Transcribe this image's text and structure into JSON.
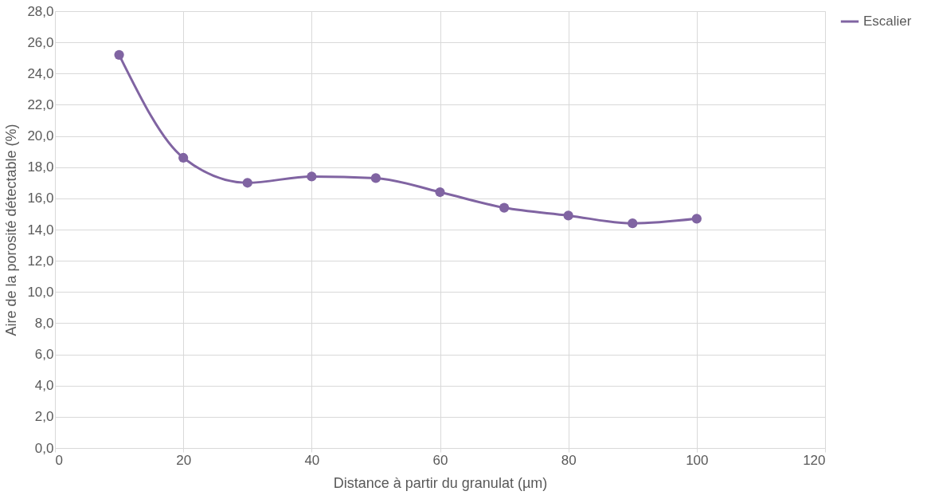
{
  "chart_data": {
    "type": "line",
    "xlabel": "Distance à partir du granulat (µm)",
    "ylabel": "Aire de la porosité détectable  (%)",
    "x": [
      10,
      20,
      30,
      40,
      50,
      60,
      70,
      80,
      90,
      100
    ],
    "series": [
      {
        "name": "Escalier",
        "color": "#8064a2",
        "values": [
          25.2,
          18.6,
          17.0,
          17.4,
          17.3,
          16.4,
          15.4,
          14.9,
          14.4,
          14.7
        ]
      }
    ],
    "xlim": [
      0,
      120
    ],
    "xticks": [
      0,
      20,
      40,
      60,
      80,
      100,
      120
    ],
    "ylim": [
      0,
      28
    ],
    "yticks": [
      {
        "value": 0,
        "label": "0,0"
      },
      {
        "value": 2,
        "label": "2,0"
      },
      {
        "value": 4,
        "label": "4,0"
      },
      {
        "value": 6,
        "label": "6,0"
      },
      {
        "value": 8,
        "label": "8,0"
      },
      {
        "value": 10,
        "label": "10,0"
      },
      {
        "value": 12,
        "label": "12,0"
      },
      {
        "value": 14,
        "label": "14,0"
      },
      {
        "value": 16,
        "label": "16,0"
      },
      {
        "value": 18,
        "label": "18,0"
      },
      {
        "value": 20,
        "label": "20,0"
      },
      {
        "value": 22,
        "label": "22,0"
      },
      {
        "value": 24,
        "label": "24,0"
      },
      {
        "value": 26,
        "label": "26,0"
      },
      {
        "value": 28,
        "label": "28,0"
      }
    ],
    "grid": true,
    "legend": "right",
    "marker": "circle",
    "line_style": "solid"
  }
}
